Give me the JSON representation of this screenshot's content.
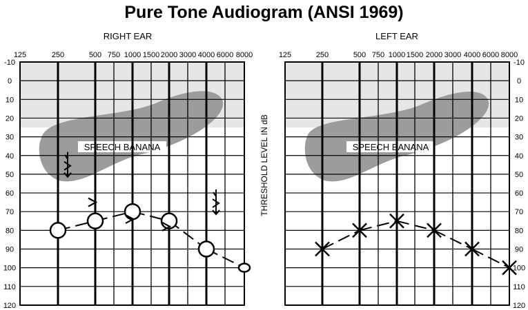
{
  "title": "Pure Tone Audiogram (ANSI 1969)",
  "chart_data": [
    {
      "type": "scatter",
      "title": "RIGHT EAR",
      "x_tick_labels": [
        "125",
        "250",
        "500",
        "750",
        "1000",
        "1500",
        "2000",
        "3000",
        "4000",
        "6000",
        "8000"
      ],
      "y_tick_labels": [
        "-10",
        "0",
        "10",
        "20",
        "30",
        "40",
        "50",
        "60",
        "70",
        "80",
        "90",
        "100",
        "110",
        "120"
      ],
      "ylim": [
        -10,
        120
      ],
      "y_inverted": true,
      "grid": true,
      "normal_zone": [
        -10,
        25
      ],
      "region_label": "SPEECH BANANA",
      "series": [
        {
          "symbol": "O",
          "points": [
            {
              "x": 250,
              "y": 80
            },
            {
              "x": 500,
              "y": 75
            },
            {
              "x": 1000,
              "y": 70
            },
            {
              "x": 2000,
              "y": 75
            },
            {
              "x": 4000,
              "y": 90
            },
            {
              "x": 8000,
              "y": 100
            }
          ]
        },
        {
          "symbol": ">",
          "points": [
            {
              "x": 500,
              "y": 65
            },
            {
              "x": 1000,
              "y": 74
            },
            {
              "x": 2000,
              "y": 78
            }
          ]
        },
        {
          "symbol": "arrow",
          "points": [
            {
              "x": 250,
              "y": 47
            },
            {
              "x": 4000,
              "y": 67
            }
          ]
        }
      ]
    },
    {
      "type": "line",
      "title": "LEFT EAR",
      "x_tick_labels": [
        "125",
        "250",
        "500",
        "750",
        "1000",
        "1500",
        "2000",
        "3000",
        "4000",
        "6000",
        "8000"
      ],
      "y_tick_labels": [
        "-10",
        "0",
        "10",
        "20",
        "30",
        "40",
        "50",
        "60",
        "70",
        "80",
        "90",
        "100",
        "110",
        "120"
      ],
      "ylim": [
        -10,
        120
      ],
      "y_inverted": true,
      "grid": true,
      "normal_zone": [
        -10,
        25
      ],
      "region_label": "SPEECH BANANA",
      "series": [
        {
          "symbol": "X",
          "points": [
            {
              "x": 250,
              "y": 90
            },
            {
              "x": 500,
              "y": 80
            },
            {
              "x": 1000,
              "y": 75
            },
            {
              "x": 2000,
              "y": 80
            },
            {
              "x": 4000,
              "y": 90
            },
            {
              "x": 8000,
              "y": 100
            }
          ]
        }
      ]
    }
  ],
  "ylabel": "THRESHOLD LEVEL IN dB"
}
